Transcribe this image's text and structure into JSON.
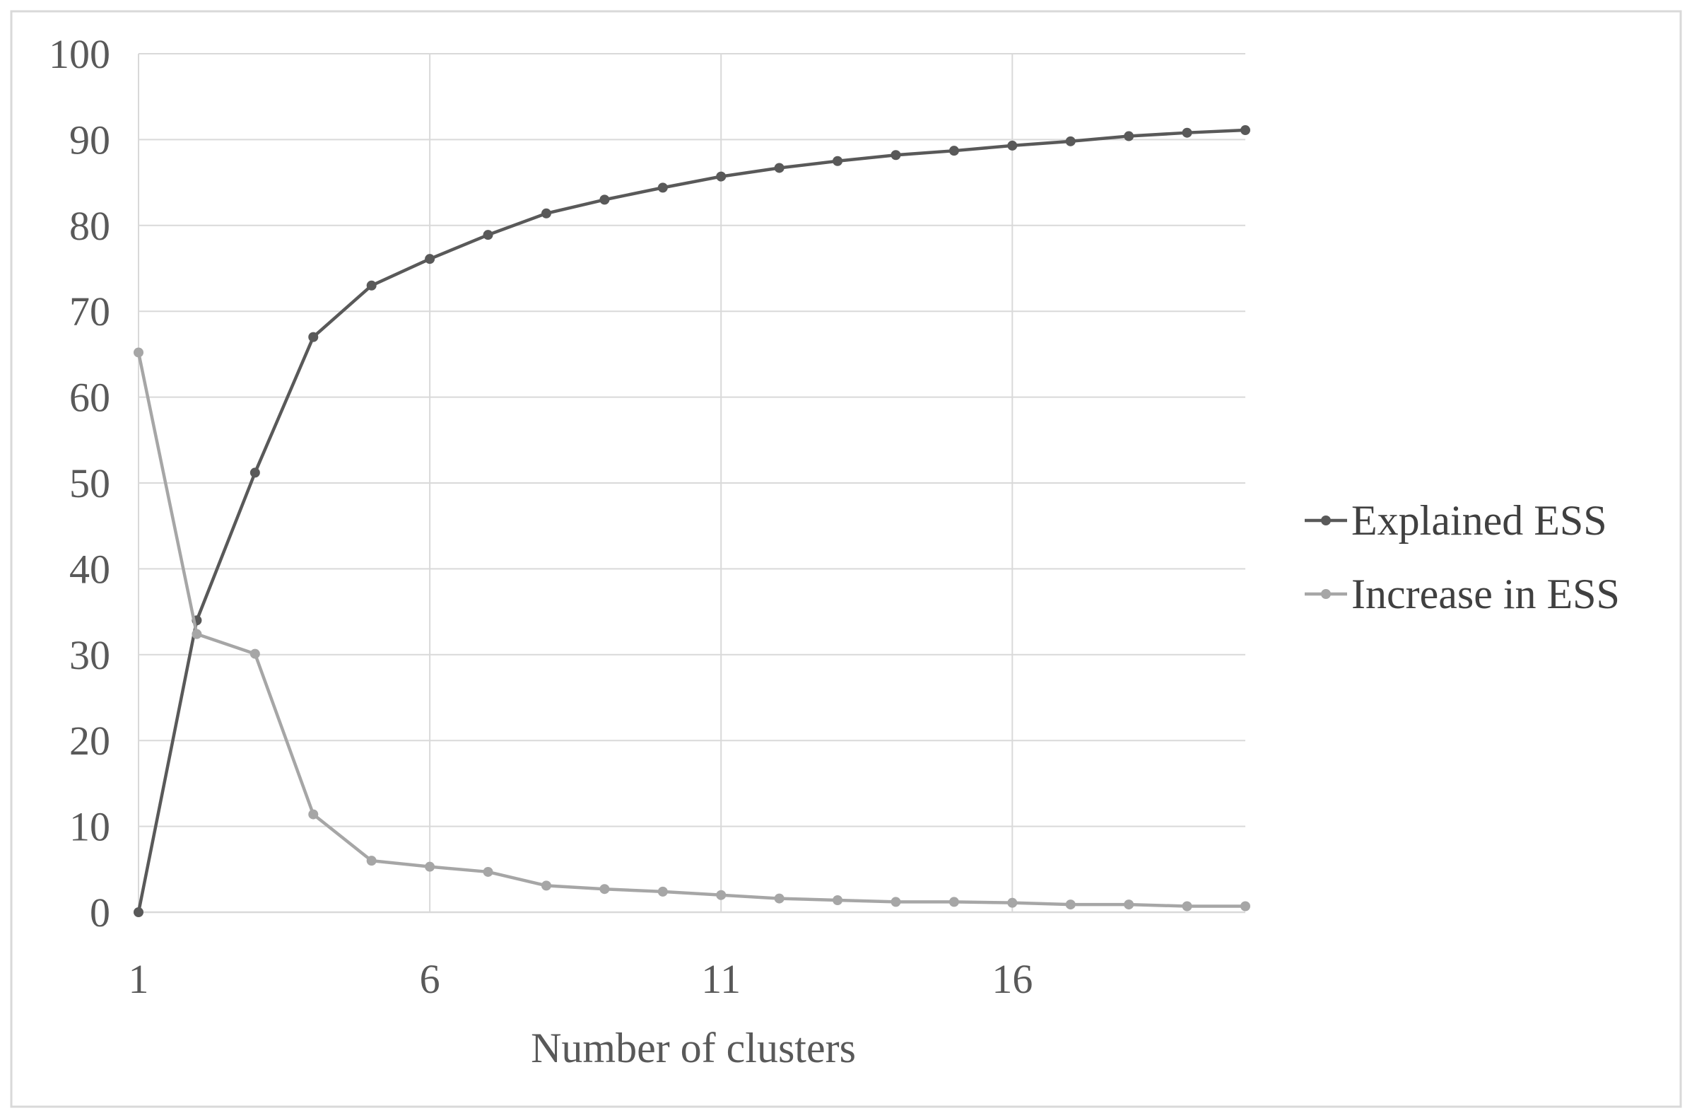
{
  "chart_data": {
    "type": "line",
    "title": "",
    "xlabel": "Number of clusters",
    "ylabel": "",
    "xlim": [
      1,
      20
    ],
    "ylim": [
      0,
      100
    ],
    "x_ticks": [
      1,
      6,
      11,
      16
    ],
    "y_ticks": [
      0,
      10,
      20,
      30,
      40,
      50,
      60,
      70,
      80,
      90,
      100
    ],
    "grid": true,
    "legend_position": "right",
    "x": [
      1,
      2,
      3,
      4,
      5,
      6,
      7,
      8,
      9,
      10,
      11,
      12,
      13,
      14,
      15,
      16,
      17,
      18,
      19,
      20
    ],
    "series": [
      {
        "name": "Explained ESS",
        "color": "#595959",
        "values": [
          0,
          34,
          51.2,
          67,
          73,
          76.1,
          78.9,
          81.4,
          83,
          84.4,
          85.7,
          86.7,
          87.5,
          88.2,
          88.7,
          89.3,
          89.8,
          90.4,
          90.8,
          91.1
        ]
      },
      {
        "name": "Increase in ESS",
        "color": "#a6a6a6",
        "values": [
          65.2,
          32.4,
          30.1,
          11.4,
          6,
          5.3,
          4.7,
          3.1,
          2.7,
          2.4,
          2,
          1.6,
          1.4,
          1.2,
          1.2,
          1.1,
          0.9,
          0.9,
          0.7,
          0.7
        ]
      }
    ]
  }
}
